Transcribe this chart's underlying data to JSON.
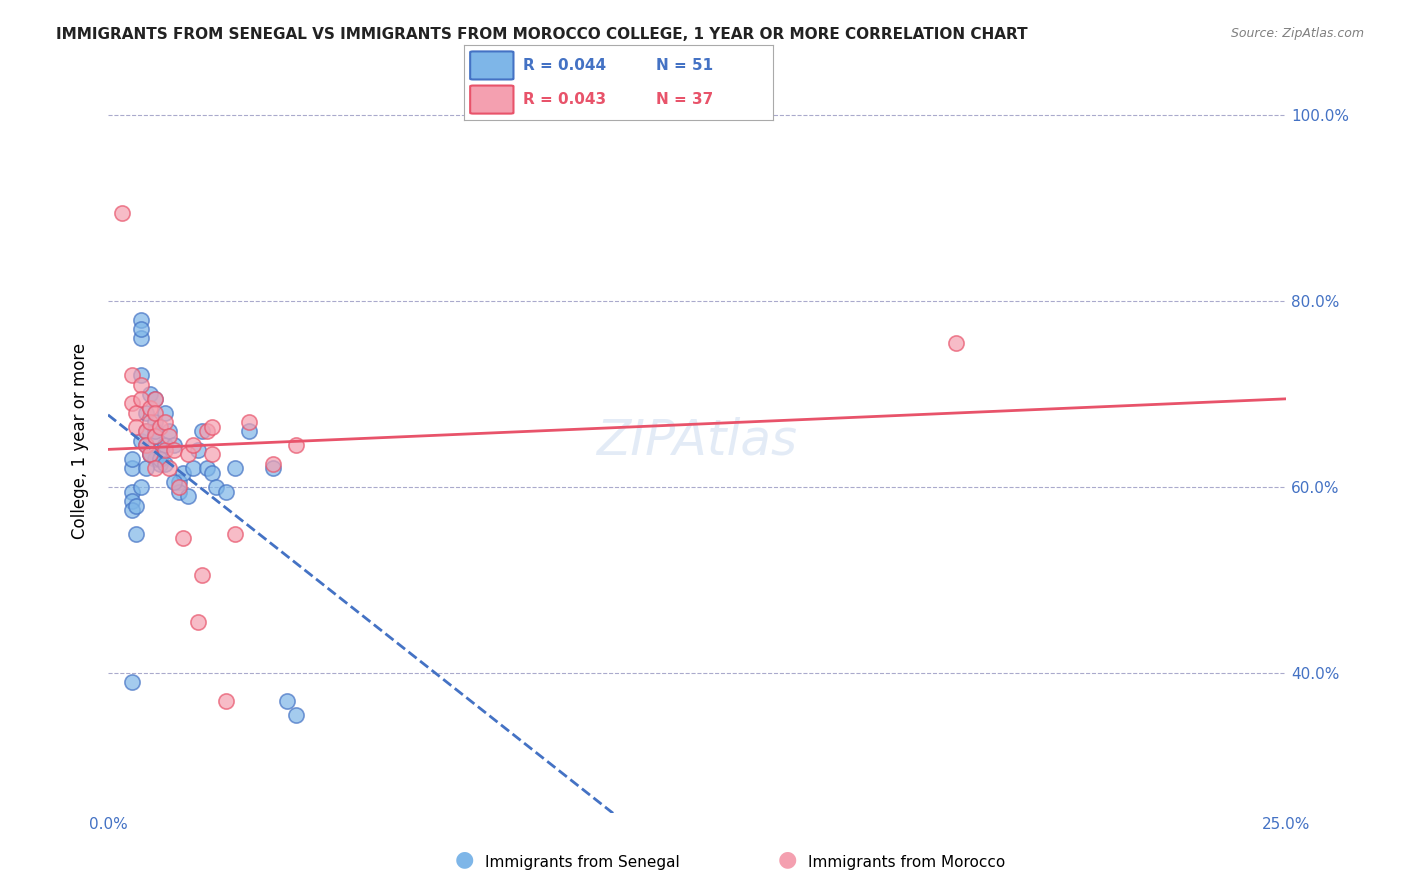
{
  "title": "IMMIGRANTS FROM SENEGAL VS IMMIGRANTS FROM MOROCCO COLLEGE, 1 YEAR OR MORE CORRELATION CHART",
  "source": "Source: ZipAtlas.com",
  "ylabel": "College, 1 year or more",
  "xmin": 0.0,
  "xmax": 0.25,
  "ymin": 0.25,
  "ymax": 1.05,
  "yticks": [
    0.4,
    0.6,
    0.8,
    1.0
  ],
  "ytick_labels": [
    "40.0%",
    "60.0%",
    "80.0%",
    "100.0%"
  ],
  "xticks": [
    0.0,
    0.05,
    0.1,
    0.15,
    0.2,
    0.25
  ],
  "xtick_labels": [
    "0.0%",
    "",
    "",
    "",
    "",
    "25.0%"
  ],
  "legend_r_senegal": "R = 0.044",
  "legend_n_senegal": "N = 51",
  "legend_r_morocco": "R = 0.043",
  "legend_n_morocco": "N = 37",
  "color_senegal": "#7EB6E8",
  "color_morocco": "#F4A0B0",
  "color_senegal_line": "#4472C4",
  "color_morocco_line": "#E8536A",
  "color_axis_labels": "#4472C4",
  "color_title": "#222222",
  "color_grid": "#AAAACC",
  "senegal_x": [
    0.005,
    0.005,
    0.005,
    0.005,
    0.005,
    0.007,
    0.007,
    0.007,
    0.007,
    0.007,
    0.008,
    0.008,
    0.008,
    0.009,
    0.009,
    0.01,
    0.01,
    0.01,
    0.01,
    0.011,
    0.011,
    0.012,
    0.012,
    0.013,
    0.014,
    0.015,
    0.015,
    0.016,
    0.017,
    0.018,
    0.019,
    0.02,
    0.021,
    0.022,
    0.023,
    0.025,
    0.027,
    0.03,
    0.035,
    0.038,
    0.04,
    0.005,
    0.006,
    0.006,
    0.007,
    0.008,
    0.009,
    0.01,
    0.011,
    0.012,
    0.014
  ],
  "senegal_y": [
    0.62,
    0.63,
    0.595,
    0.585,
    0.575,
    0.78,
    0.76,
    0.72,
    0.65,
    0.6,
    0.68,
    0.66,
    0.645,
    0.7,
    0.635,
    0.695,
    0.67,
    0.655,
    0.63,
    0.64,
    0.625,
    0.68,
    0.645,
    0.66,
    0.645,
    0.605,
    0.595,
    0.615,
    0.59,
    0.62,
    0.64,
    0.66,
    0.62,
    0.615,
    0.6,
    0.595,
    0.62,
    0.66,
    0.62,
    0.37,
    0.355,
    0.39,
    0.58,
    0.55,
    0.77,
    0.62,
    0.635,
    0.66,
    0.63,
    0.625,
    0.605
  ],
  "morocco_x": [
    0.003,
    0.005,
    0.005,
    0.006,
    0.006,
    0.007,
    0.007,
    0.008,
    0.008,
    0.009,
    0.009,
    0.01,
    0.01,
    0.01,
    0.011,
    0.012,
    0.012,
    0.013,
    0.013,
    0.014,
    0.015,
    0.016,
    0.017,
    0.018,
    0.019,
    0.02,
    0.021,
    0.022,
    0.025,
    0.027,
    0.03,
    0.035,
    0.04,
    0.18,
    0.009,
    0.01,
    0.022
  ],
  "morocco_y": [
    0.895,
    0.69,
    0.72,
    0.68,
    0.665,
    0.71,
    0.695,
    0.66,
    0.645,
    0.685,
    0.67,
    0.695,
    0.68,
    0.655,
    0.665,
    0.67,
    0.64,
    0.655,
    0.62,
    0.64,
    0.6,
    0.545,
    0.635,
    0.645,
    0.455,
    0.505,
    0.66,
    0.635,
    0.37,
    0.55,
    0.67,
    0.625,
    0.645,
    0.755,
    0.635,
    0.62,
    0.665
  ]
}
